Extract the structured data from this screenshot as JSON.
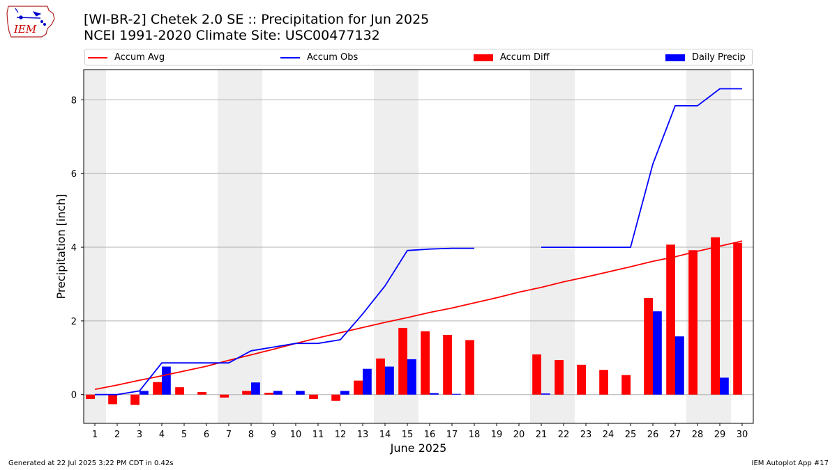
{
  "header": {
    "title_line1": "[WI-BR-2] Chetek 2.0 SE :: Precipitation for Jun 2025",
    "title_line2": "NCEI 1991-2020 Climate Site: USC00477132",
    "logo_text": "IEM"
  },
  "footer": {
    "left": "Generated at 22 Jul 2025 3:22 PM CDT in 0.42s",
    "right": "IEM Autoplot App #17"
  },
  "legend": {
    "items": [
      {
        "label": "Accum Avg",
        "kind": "line",
        "color": "#ff0000"
      },
      {
        "label": "Accum Obs",
        "kind": "line",
        "color": "#0000ff"
      },
      {
        "label": "Accum Diff",
        "kind": "bar",
        "color": "#ff0000"
      },
      {
        "label": "Daily Precip",
        "kind": "bar",
        "color": "#0000ff"
      }
    ]
  },
  "chart_data": {
    "type": "bar",
    "xlabel": "June 2025",
    "ylabel": "Precipitation [inch]",
    "x": [
      1,
      2,
      3,
      4,
      5,
      6,
      7,
      8,
      9,
      10,
      11,
      12,
      13,
      14,
      15,
      16,
      17,
      18,
      19,
      20,
      21,
      22,
      23,
      24,
      25,
      26,
      27,
      28,
      29,
      30
    ],
    "xlim": [
      0.5,
      30.5
    ],
    "ylim": [
      -0.78,
      8.82
    ],
    "yticks": [
      0,
      2,
      4,
      6,
      8
    ],
    "grid": "horizontal",
    "legend_position": "top",
    "weekend_shading": [
      [
        0.5,
        1.5
      ],
      [
        6.5,
        8.5
      ],
      [
        13.5,
        15.5
      ],
      [
        20.5,
        22.5
      ],
      [
        27.5,
        29.5
      ]
    ],
    "series": [
      {
        "name": "Accum Avg",
        "kind": "line",
        "color": "#ff0000",
        "values": [
          0.14,
          0.26,
          0.39,
          0.51,
          0.64,
          0.77,
          0.93,
          1.08,
          1.23,
          1.39,
          1.54,
          1.68,
          1.82,
          1.96,
          2.09,
          2.23,
          2.35,
          2.49,
          2.63,
          2.78,
          2.91,
          3.06,
          3.19,
          3.33,
          3.47,
          3.62,
          3.74,
          3.89,
          4.03,
          4.17
        ]
      },
      {
        "name": "Accum Obs",
        "kind": "line",
        "color": "#0000ff",
        "values": [
          0.0,
          0.0,
          0.1,
          0.86,
          0.86,
          0.86,
          0.86,
          1.19,
          1.29,
          1.39,
          1.39,
          1.49,
          2.19,
          2.95,
          3.91,
          3.95,
          3.97,
          3.97,
          null,
          null,
          4.0,
          4.0,
          4.0,
          4.0,
          4.0,
          6.26,
          7.84,
          7.84,
          8.3,
          8.3
        ]
      },
      {
        "name": "Accum Diff",
        "kind": "bar",
        "color": "#ff0000",
        "values": [
          -0.12,
          -0.26,
          -0.28,
          0.34,
          0.2,
          0.07,
          -0.08,
          0.1,
          0.05,
          0.0,
          -0.12,
          -0.17,
          0.38,
          0.98,
          1.81,
          1.72,
          1.62,
          1.48,
          null,
          null,
          1.09,
          0.94,
          0.81,
          0.67,
          0.53,
          2.62,
          4.07,
          3.92,
          4.27,
          4.12
        ]
      },
      {
        "name": "Daily Precip",
        "kind": "bar",
        "color": "#0000ff",
        "values": [
          0.0,
          0.0,
          0.1,
          0.76,
          0.0,
          0.0,
          0.0,
          0.33,
          0.1,
          0.1,
          0.0,
          0.1,
          0.7,
          0.76,
          0.96,
          0.04,
          0.02,
          0.0,
          null,
          null,
          0.03,
          0.0,
          0.0,
          0.0,
          0.0,
          2.26,
          1.58,
          0.0,
          0.46,
          0.0
        ]
      }
    ]
  }
}
